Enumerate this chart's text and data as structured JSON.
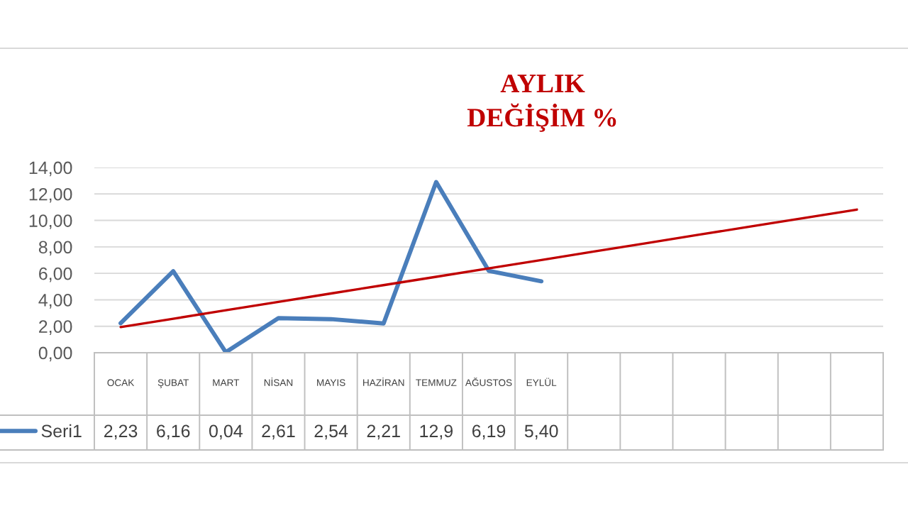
{
  "chart_data": {
    "type": "line",
    "title": "AYLIK\nDEĞİŞİM %",
    "categories": [
      "OCAK",
      "ŞUBAT",
      "MART",
      "NİSAN",
      "MAYIS",
      "HAZİRAN",
      "TEMMUZ",
      "AĞUSTOS",
      "EYLÜL",
      null,
      null,
      null,
      null,
      null,
      null
    ],
    "series": [
      {
        "name": "Seri1",
        "color": "#4a7ebb",
        "values": [
          2.23,
          6.16,
          0.04,
          2.61,
          2.54,
          2.21,
          12.9,
          6.19,
          5.4,
          null,
          null,
          null,
          null,
          null,
          null
        ],
        "value_labels": [
          "2,23",
          "6,16",
          "0,04",
          "2,61",
          "2,54",
          "2,21",
          "12,9",
          "6,19",
          "5,40",
          null,
          null,
          null,
          null,
          null,
          null
        ]
      },
      {
        "type": "line",
        "color": "#c00000",
        "values": [
          1.94,
          2.57,
          3.21,
          3.84,
          4.48,
          5.11,
          5.74,
          6.38,
          7.01,
          7.65,
          8.28,
          8.92,
          9.55,
          10.19,
          10.82
        ]
      }
    ],
    "ylim": [
      0,
      14
    ],
    "yticks": [
      {
        "value": 0,
        "label": "0,00"
      },
      {
        "value": 2,
        "label": "2,00"
      },
      {
        "value": 4,
        "label": "4,00"
      },
      {
        "value": 6,
        "label": "6,00"
      },
      {
        "value": 8,
        "label": "8,00"
      },
      {
        "value": 10,
        "label": "10,00"
      },
      {
        "value": 12,
        "label": "12,00"
      },
      {
        "value": 14,
        "label": "14,00"
      }
    ],
    "grid": "y",
    "legend": "bottom left"
  }
}
